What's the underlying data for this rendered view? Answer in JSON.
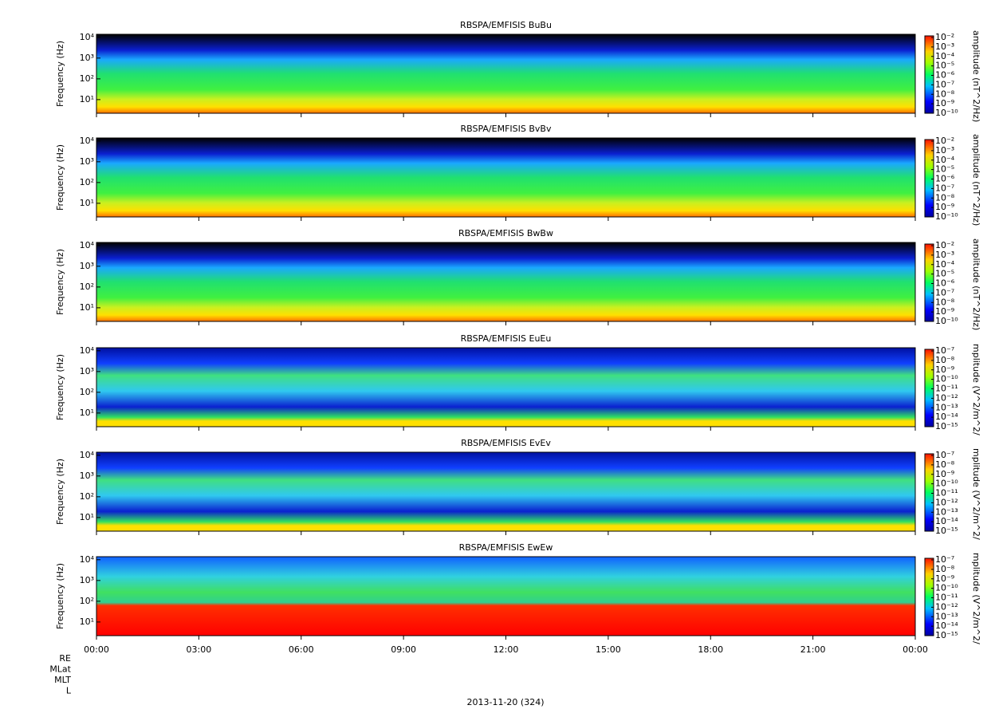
{
  "chart_data": [
    {
      "type": "spectrogram",
      "title": "RBSPA/EMFISIS  BuBu",
      "ylabel": "Frequency (Hz)",
      "colorbar_label": "amplitude (nT^2/Hz)",
      "xlim": [
        0,
        24
      ],
      "xticks": [
        {
          "value": 0,
          "label": "00:00"
        },
        {
          "value": 3,
          "label": "03:00"
        },
        {
          "value": 6,
          "label": "06:00"
        },
        {
          "value": 9,
          "label": "09:00"
        },
        {
          "value": 12,
          "label": "12:00"
        },
        {
          "value": 15,
          "label": "15:00"
        },
        {
          "value": 18,
          "label": "18:00"
        },
        {
          "value": 21,
          "label": "21:00"
        },
        {
          "value": 24,
          "label": "00:00"
        }
      ],
      "ylim": [
        2.2,
        14000
      ],
      "yticks": [
        {
          "value": 10,
          "label": "10¹"
        },
        {
          "value": 100,
          "label": "10²"
        },
        {
          "value": 1000,
          "label": "10³"
        },
        {
          "value": 10000,
          "label": "10⁴"
        }
      ],
      "log_y": true,
      "clim": [
        1e-10,
        0.01
      ],
      "cticks": [
        {
          "value": 0.01,
          "label": "10⁻²"
        },
        {
          "value": 0.001,
          "label": "10⁻³"
        },
        {
          "value": 0.0001,
          "label": "10⁻⁴"
        },
        {
          "value": 1e-05,
          "label": "10⁻⁵"
        },
        {
          "value": 1e-06,
          "label": "10⁻⁶"
        },
        {
          "value": 1e-07,
          "label": "10⁻⁷"
        },
        {
          "value": 1e-08,
          "label": "10⁻⁸"
        },
        {
          "value": 1e-09,
          "label": "10⁻⁹"
        },
        {
          "value": 1e-10,
          "label": "10⁻¹⁰"
        }
      ]
    },
    {
      "type": "spectrogram",
      "title": "RBSPA/EMFISIS  BvBv",
      "ylabel": "Frequency (Hz)",
      "colorbar_label": "amplitude (nT^2/Hz)",
      "xlim": [
        0,
        24
      ],
      "xticks": [
        {
          "value": 0,
          "label": "00:00"
        },
        {
          "value": 3,
          "label": "03:00"
        },
        {
          "value": 6,
          "label": "06:00"
        },
        {
          "value": 9,
          "label": "09:00"
        },
        {
          "value": 12,
          "label": "12:00"
        },
        {
          "value": 15,
          "label": "15:00"
        },
        {
          "value": 18,
          "label": "18:00"
        },
        {
          "value": 21,
          "label": "21:00"
        },
        {
          "value": 24,
          "label": "00:00"
        }
      ],
      "ylim": [
        2.2,
        14000
      ],
      "yticks": [
        {
          "value": 10,
          "label": "10¹"
        },
        {
          "value": 100,
          "label": "10²"
        },
        {
          "value": 1000,
          "label": "10³"
        },
        {
          "value": 10000,
          "label": "10⁴"
        }
      ],
      "log_y": true,
      "clim": [
        1e-10,
        0.01
      ],
      "cticks": [
        {
          "value": 0.01,
          "label": "10⁻²"
        },
        {
          "value": 0.001,
          "label": "10⁻³"
        },
        {
          "value": 0.0001,
          "label": "10⁻⁴"
        },
        {
          "value": 1e-05,
          "label": "10⁻⁵"
        },
        {
          "value": 1e-06,
          "label": "10⁻⁶"
        },
        {
          "value": 1e-07,
          "label": "10⁻⁷"
        },
        {
          "value": 1e-08,
          "label": "10⁻⁸"
        },
        {
          "value": 1e-09,
          "label": "10⁻⁹"
        },
        {
          "value": 1e-10,
          "label": "10⁻¹⁰"
        }
      ]
    },
    {
      "type": "spectrogram",
      "title": "RBSPA/EMFISIS  BwBw",
      "ylabel": "Frequency (Hz)",
      "colorbar_label": "amplitude (nT^2/Hz)",
      "xlim": [
        0,
        24
      ],
      "xticks": [
        {
          "value": 0,
          "label": "00:00"
        },
        {
          "value": 3,
          "label": "03:00"
        },
        {
          "value": 6,
          "label": "06:00"
        },
        {
          "value": 9,
          "label": "09:00"
        },
        {
          "value": 12,
          "label": "12:00"
        },
        {
          "value": 15,
          "label": "15:00"
        },
        {
          "value": 18,
          "label": "18:00"
        },
        {
          "value": 21,
          "label": "21:00"
        },
        {
          "value": 24,
          "label": "00:00"
        }
      ],
      "ylim": [
        2.2,
        14000
      ],
      "yticks": [
        {
          "value": 10,
          "label": "10¹"
        },
        {
          "value": 100,
          "label": "10²"
        },
        {
          "value": 1000,
          "label": "10³"
        },
        {
          "value": 10000,
          "label": "10⁴"
        }
      ],
      "log_y": true,
      "clim": [
        1e-10,
        0.01
      ],
      "cticks": [
        {
          "value": 0.01,
          "label": "10⁻²"
        },
        {
          "value": 0.001,
          "label": "10⁻³"
        },
        {
          "value": 0.0001,
          "label": "10⁻⁴"
        },
        {
          "value": 1e-05,
          "label": "10⁻⁵"
        },
        {
          "value": 1e-06,
          "label": "10⁻⁶"
        },
        {
          "value": 1e-07,
          "label": "10⁻⁷"
        },
        {
          "value": 1e-08,
          "label": "10⁻⁸"
        },
        {
          "value": 1e-09,
          "label": "10⁻⁹"
        },
        {
          "value": 1e-10,
          "label": "10⁻¹⁰"
        }
      ]
    },
    {
      "type": "spectrogram",
      "title": "RBSPA/EMFISIS  EuEu",
      "ylabel": "Frequency (Hz)",
      "colorbar_label": "mplitude (V^2/m^2/",
      "xlim": [
        0,
        24
      ],
      "xticks": [
        {
          "value": 0,
          "label": "00:00"
        },
        {
          "value": 3,
          "label": "03:00"
        },
        {
          "value": 6,
          "label": "06:00"
        },
        {
          "value": 9,
          "label": "09:00"
        },
        {
          "value": 12,
          "label": "12:00"
        },
        {
          "value": 15,
          "label": "15:00"
        },
        {
          "value": 18,
          "label": "18:00"
        },
        {
          "value": 21,
          "label": "21:00"
        },
        {
          "value": 24,
          "label": "00:00"
        }
      ],
      "ylim": [
        2.2,
        14000
      ],
      "yticks": [
        {
          "value": 10,
          "label": "10¹"
        },
        {
          "value": 100,
          "label": "10²"
        },
        {
          "value": 1000,
          "label": "10³"
        },
        {
          "value": 10000,
          "label": "10⁴"
        }
      ],
      "log_y": true,
      "clim": [
        1e-15,
        1e-07
      ],
      "cticks": [
        {
          "value": 1e-07,
          "label": "10⁻⁷"
        },
        {
          "value": 1e-08,
          "label": "10⁻⁸"
        },
        {
          "value": 1e-09,
          "label": "10⁻⁹"
        },
        {
          "value": 1e-10,
          "label": "10⁻¹⁰"
        },
        {
          "value": 1e-11,
          "label": "10⁻¹¹"
        },
        {
          "value": 1e-12,
          "label": "10⁻¹²"
        },
        {
          "value": 1e-13,
          "label": "10⁻¹³"
        },
        {
          "value": 1e-14,
          "label": "10⁻¹⁴"
        },
        {
          "value": 1e-15,
          "label": "10⁻¹⁵"
        }
      ]
    },
    {
      "type": "spectrogram",
      "title": "RBSPA/EMFISIS  EvEv",
      "ylabel": "Frequency (Hz)",
      "colorbar_label": "mplitude (V^2/m^2/",
      "xlim": [
        0,
        24
      ],
      "xticks": [
        {
          "value": 0,
          "label": "00:00"
        },
        {
          "value": 3,
          "label": "03:00"
        },
        {
          "value": 6,
          "label": "06:00"
        },
        {
          "value": 9,
          "label": "09:00"
        },
        {
          "value": 12,
          "label": "12:00"
        },
        {
          "value": 15,
          "label": "15:00"
        },
        {
          "value": 18,
          "label": "18:00"
        },
        {
          "value": 21,
          "label": "21:00"
        },
        {
          "value": 24,
          "label": "00:00"
        }
      ],
      "ylim": [
        2.2,
        14000
      ],
      "yticks": [
        {
          "value": 10,
          "label": "10¹"
        },
        {
          "value": 100,
          "label": "10²"
        },
        {
          "value": 1000,
          "label": "10³"
        },
        {
          "value": 10000,
          "label": "10⁴"
        }
      ],
      "log_y": true,
      "clim": [
        1e-15,
        1e-07
      ],
      "cticks": [
        {
          "value": 1e-07,
          "label": "10⁻⁷"
        },
        {
          "value": 1e-08,
          "label": "10⁻⁸"
        },
        {
          "value": 1e-09,
          "label": "10⁻⁹"
        },
        {
          "value": 1e-10,
          "label": "10⁻¹⁰"
        },
        {
          "value": 1e-11,
          "label": "10⁻¹¹"
        },
        {
          "value": 1e-12,
          "label": "10⁻¹²"
        },
        {
          "value": 1e-13,
          "label": "10⁻¹³"
        },
        {
          "value": 1e-14,
          "label": "10⁻¹⁴"
        },
        {
          "value": 1e-15,
          "label": "10⁻¹⁵"
        }
      ]
    },
    {
      "type": "spectrogram",
      "title": "RBSPA/EMFISIS  EwEw",
      "ylabel": "Frequency (Hz)",
      "colorbar_label": "mplitude (V^2/m^2/",
      "xlim": [
        0,
        24
      ],
      "xticks": [
        {
          "value": 0,
          "label": "00:00"
        },
        {
          "value": 3,
          "label": "03:00"
        },
        {
          "value": 6,
          "label": "06:00"
        },
        {
          "value": 9,
          "label": "09:00"
        },
        {
          "value": 12,
          "label": "12:00"
        },
        {
          "value": 15,
          "label": "15:00"
        },
        {
          "value": 18,
          "label": "18:00"
        },
        {
          "value": 21,
          "label": "21:00"
        },
        {
          "value": 24,
          "label": "00:00"
        }
      ],
      "ylim": [
        2.2,
        14000
      ],
      "yticks": [
        {
          "value": 10,
          "label": "10¹"
        },
        {
          "value": 100,
          "label": "10²"
        },
        {
          "value": 1000,
          "label": "10³"
        },
        {
          "value": 10000,
          "label": "10⁴"
        }
      ],
      "log_y": true,
      "clim": [
        1e-15,
        1e-07
      ],
      "cticks": [
        {
          "value": 1e-07,
          "label": "10⁻⁷"
        },
        {
          "value": 1e-08,
          "label": "10⁻⁸"
        },
        {
          "value": 1e-09,
          "label": "10⁻⁹"
        },
        {
          "value": 1e-10,
          "label": "10⁻¹⁰"
        },
        {
          "value": 1e-11,
          "label": "10⁻¹¹"
        },
        {
          "value": 1e-12,
          "label": "10⁻¹²"
        },
        {
          "value": 1e-13,
          "label": "10⁻¹³"
        },
        {
          "value": 1e-14,
          "label": "10⁻¹⁴"
        },
        {
          "value": 1e-15,
          "label": "10⁻¹⁵"
        }
      ]
    }
  ],
  "footer": {
    "ephemeris_labels": [
      "RE",
      "MLat",
      "MLT",
      "L"
    ],
    "date": "2013-11-20 (324)"
  }
}
